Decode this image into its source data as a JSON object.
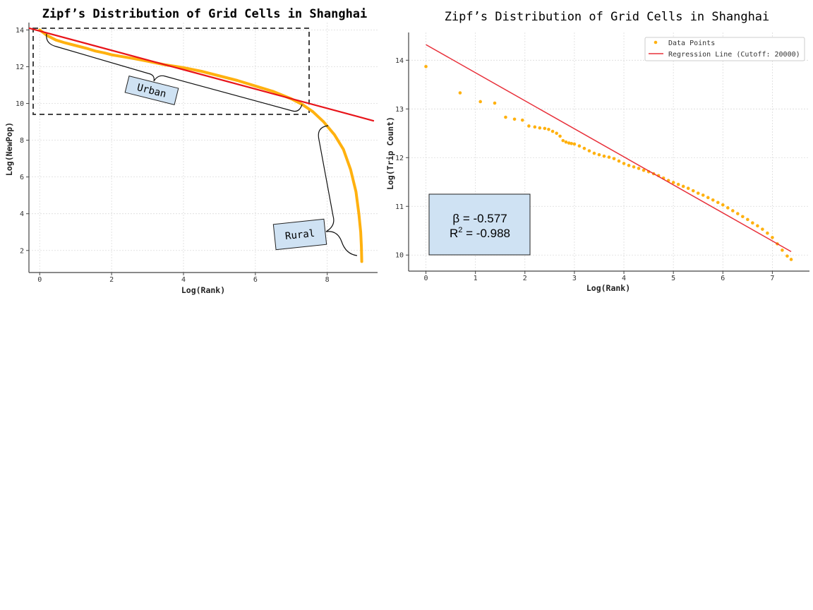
{
  "chart_data": [
    {
      "type": "line",
      "title": "Zipf’s Distribution of Grid Cells in Shanghai",
      "xlabel": "Log(Rank)",
      "ylabel": "Log(NewPop)",
      "xlim": [
        -0.3,
        9.4
      ],
      "ylim": [
        0.8,
        14.4
      ],
      "xticks": [
        0,
        2,
        4,
        6,
        8
      ],
      "yticks": [
        2,
        4,
        6,
        8,
        10,
        12,
        14
      ],
      "grid": true,
      "series": [
        {
          "kind": "data",
          "color": "#ffb10f",
          "x": [
            0,
            0.2,
            0.45,
            0.7,
            1.0,
            1.3,
            1.55,
            1.8,
            2.0,
            2.3,
            2.6,
            3.0,
            3.5,
            4.0,
            4.5,
            5.0,
            5.5,
            6.0,
            6.5,
            7.0,
            7.3,
            7.6,
            7.9,
            8.2,
            8.45,
            8.65,
            8.8,
            8.88,
            8.93,
            8.95,
            8.96
          ],
          "y": [
            14.0,
            13.7,
            13.45,
            13.3,
            13.15,
            13.0,
            12.85,
            12.75,
            12.65,
            12.55,
            12.45,
            12.3,
            12.1,
            11.95,
            11.75,
            11.5,
            11.25,
            10.95,
            10.65,
            10.25,
            9.95,
            9.55,
            9.0,
            8.3,
            7.5,
            6.4,
            5.2,
            4.0,
            3.0,
            2.2,
            1.4
          ]
        },
        {
          "kind": "fit",
          "color": "#e8141a",
          "x": [
            -0.3,
            9.3
          ],
          "y": [
            14.1,
            9.05
          ]
        }
      ],
      "annotations": {
        "urban_label": "Urban",
        "rural_label": "Rural"
      }
    },
    {
      "type": "scatter",
      "title": "Zipf’s Distribution of Grid Cells in Shanghai",
      "xlabel": "Log(Rank)",
      "ylabel": "Log(Trip Count)",
      "xlim": [
        -0.35,
        7.75
      ],
      "ylim": [
        9.67,
        14.57
      ],
      "xticks": [
        0,
        1,
        2,
        3,
        4,
        5,
        6,
        7
      ],
      "yticks": [
        10,
        11,
        12,
        13,
        14
      ],
      "grid": true,
      "legend_position": "top-right",
      "series": [
        {
          "name": "Data Points",
          "kind": "points",
          "color": "#ffb10f",
          "x": [
            0,
            0.69,
            1.1,
            1.39,
            1.61,
            1.79,
            1.95,
            2.08,
            2.2,
            2.3,
            2.4,
            2.48,
            2.56,
            2.64,
            2.71,
            2.77,
            2.83,
            2.89,
            2.94,
            3.0,
            3.1,
            3.2,
            3.3,
            3.4,
            3.5,
            3.6,
            3.7,
            3.8,
            3.9,
            4.0,
            4.1,
            4.2,
            4.3,
            4.4,
            4.5,
            4.6,
            4.7,
            4.8,
            4.9,
            5.0,
            5.1,
            5.2,
            5.3,
            5.4,
            5.5,
            5.6,
            5.7,
            5.8,
            5.9,
            6.0,
            6.1,
            6.2,
            6.3,
            6.4,
            6.5,
            6.6,
            6.7,
            6.8,
            6.9,
            7.0,
            7.1,
            7.2,
            7.3,
            7.38
          ],
          "y": [
            13.87,
            13.33,
            13.15,
            13.12,
            12.83,
            12.79,
            12.77,
            12.65,
            12.63,
            12.61,
            12.6,
            12.58,
            12.54,
            12.5,
            12.44,
            12.35,
            12.32,
            12.3,
            12.29,
            12.28,
            12.24,
            12.19,
            12.14,
            12.09,
            12.06,
            12.03,
            12.01,
            11.98,
            11.93,
            11.88,
            11.84,
            11.81,
            11.78,
            11.74,
            11.71,
            11.67,
            11.63,
            11.58,
            11.53,
            11.49,
            11.45,
            11.41,
            11.37,
            11.32,
            11.27,
            11.23,
            11.18,
            11.13,
            11.08,
            11.03,
            10.97,
            10.91,
            10.85,
            10.79,
            10.73,
            10.66,
            10.6,
            10.53,
            10.45,
            10.36,
            10.23,
            10.1,
            9.98,
            9.91
          ]
        },
        {
          "name": "Regression Line (Cutoff: 20000)",
          "kind": "fit",
          "color": "#e8303a",
          "x": [
            0,
            7.38
          ],
          "y": [
            14.32,
            10.07
          ]
        }
      ],
      "stats": {
        "beta_text": "β = -0.577",
        "r2_prefix": "R",
        "r2_sup": "2",
        "r2_value": " = -0.988",
        "box_color": "#cfe2f3"
      }
    }
  ]
}
